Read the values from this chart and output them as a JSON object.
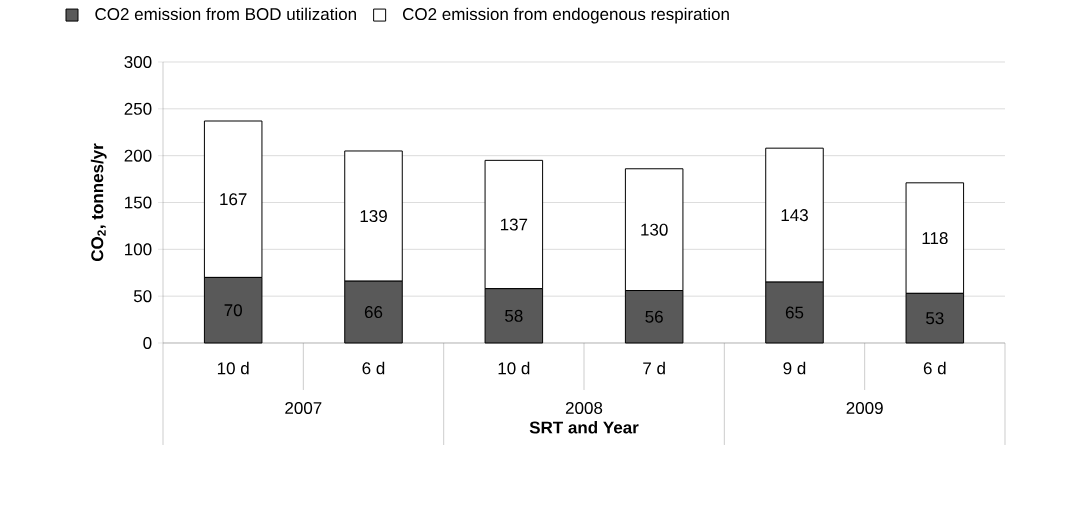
{
  "chart_data": {
    "type": "bar",
    "stacked": true,
    "xlabel": "SRT and Year",
    "ylabel": "CO$_{2}$, tonnes/yr",
    "categories": [
      "10 d",
      "6 d",
      "10 d",
      "7 d",
      "9 d",
      "6 d"
    ],
    "series": [
      {
        "name": "CO2 emission from BOD utilization",
        "color": "#595959",
        "values": [
          70,
          66,
          58,
          56,
          65,
          53
        ]
      },
      {
        "name": "CO2 emission from endogenous respiration",
        "color": "#ffffff",
        "values": [
          167,
          139,
          137,
          130,
          143,
          118
        ]
      }
    ],
    "annotations": [
      "2007",
      "2008",
      "2009"
    ],
    "ylim": [
      0,
      300
    ],
    "yticks": [
      0,
      50,
      100,
      150,
      200,
      250,
      300
    ],
    "grid": "y",
    "legend": "top",
    "data_labels": true
  }
}
